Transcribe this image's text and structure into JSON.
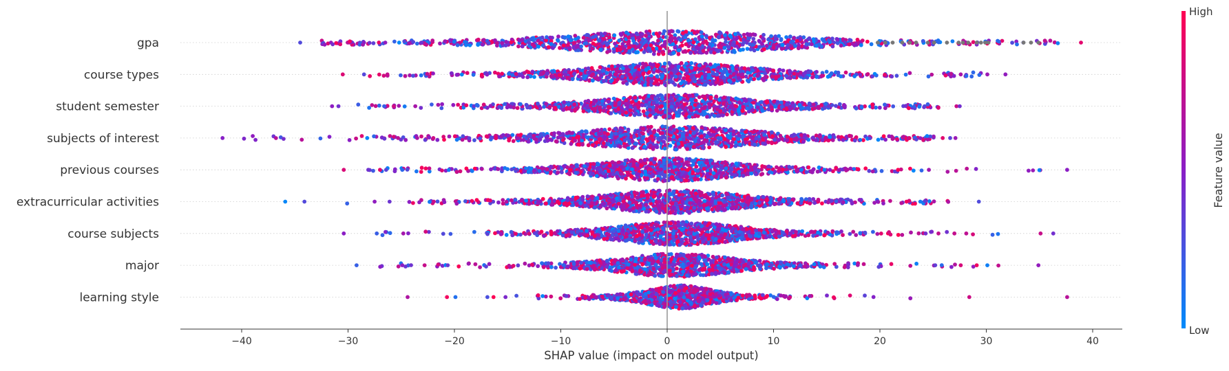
{
  "chart_data": {
    "type": "scatter",
    "subtype": "shap-beeswarm",
    "xlabel": "SHAP value (impact on model output)",
    "xlim": [
      -46,
      43
    ],
    "xticks": [
      -40,
      -30,
      -20,
      -10,
      0,
      10,
      20,
      30,
      40
    ],
    "xtick_labels": [
      "−40",
      "−30",
      "−20",
      "−10",
      "0",
      "10",
      "20",
      "30",
      "40"
    ],
    "grid": false,
    "features": [
      {
        "label": "gpa",
        "min": -34.5,
        "max": 38.9,
        "spread": 22,
        "peak": 0.4,
        "counts": 1100,
        "gray_points": [
          19.8,
          20.5,
          21.2,
          22.1,
          22.8,
          23.4,
          24.5,
          25.1,
          26.3,
          27.4,
          27.8,
          28.3,
          29.1,
          29.5,
          29.9,
          30.2,
          33.5,
          34.2,
          34.9
        ],
        "outliers": [
          -34.5,
          -28.5,
          -26.5,
          -25.2,
          -23.1,
          38.9
        ]
      },
      {
        "label": "course types",
        "min": -30.5,
        "max": 31.8,
        "spread": 16,
        "peak": 0.6,
        "counts": 1100,
        "gray_points": [],
        "outliers": [
          -30.5,
          -28.5,
          -26.3,
          27.6,
          30.1,
          31.8
        ]
      },
      {
        "label": "student semester",
        "min": -31.5,
        "max": 27.5,
        "spread": 15,
        "peak": 1.0,
        "counts": 1150,
        "gray_points": [],
        "outliers": [
          -31.5,
          -30.9,
          -26.6,
          -25.7,
          24.2,
          27.2,
          27.5
        ]
      },
      {
        "label": "subjects of interest",
        "min": -41.8,
        "max": 27.1,
        "spread": 18,
        "peak": 0.2,
        "counts": 1150,
        "gray_points": [],
        "outliers": [
          -41.8,
          -28.2,
          -25.3,
          -23.5,
          25.9,
          26.6,
          27.1
        ]
      },
      {
        "label": "previous courses",
        "min": -30.4,
        "max": 37.6,
        "spread": 14,
        "peak": 0.1,
        "counts": 1100,
        "gray_points": [],
        "outliers": [
          -30.4,
          -28.1,
          -27.0,
          -24.9,
          21.7,
          24.6,
          37.6
        ]
      },
      {
        "label": "extracurricular activities",
        "min": -35.9,
        "max": 29.3,
        "spread": 14,
        "peak": 0.6,
        "counts": 1100,
        "gray_points": [],
        "outliers": [
          -35.9,
          -34.1,
          -27.5,
          -26.1,
          22.5,
          23.8,
          29.3
        ]
      },
      {
        "label": "course subjects",
        "min": -30.4,
        "max": 36.3,
        "spread": 13,
        "peak": 1.0,
        "counts": 1100,
        "gray_points": [],
        "outliers": [
          -30.4,
          -27.3,
          -24.8,
          24.3,
          25.5,
          27.0,
          35.1,
          36.3
        ]
      },
      {
        "label": "major",
        "min": -29.2,
        "max": 34.9,
        "spread": 12,
        "peak": 0.9,
        "counts": 1000,
        "gray_points": [],
        "outliers": [
          -29.2,
          -24.9,
          -22.8,
          25.2,
          27.6,
          29.1,
          30.1,
          34.9
        ]
      },
      {
        "label": "learning style",
        "min": -24.4,
        "max": 37.6,
        "spread": 7,
        "peak": 1.2,
        "counts": 850,
        "gray_points": [],
        "outliers": [
          -24.4,
          -20.7,
          -19.9,
          -16.9,
          -15.2,
          28.4,
          37.6
        ]
      }
    ],
    "colorbar": {
      "label": "Feature value",
      "high_label": "High",
      "low_label": "Low",
      "low_color": "#008bfb",
      "mid_color": "#8a1ec6",
      "high_color": "#ff0052"
    },
    "missing_color": "#777777",
    "zero_line_color": "#999999"
  }
}
